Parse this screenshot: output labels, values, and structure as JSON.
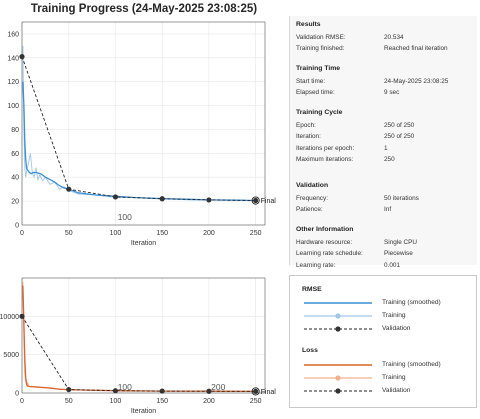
{
  "window": {
    "title": "Training Progress (24-May-2025 23:08:25)"
  },
  "plots": {
    "top": {
      "xlabel": "Iteration",
      "final_label": "Final",
      "annotation": "100",
      "yticks": [
        "0",
        "20",
        "40",
        "60",
        "80",
        "100",
        "120",
        "140",
        "160"
      ],
      "xticks": [
        "0",
        "50",
        "100",
        "150",
        "200",
        "250"
      ]
    },
    "bottom": {
      "xlabel": "Iteration",
      "final_label": "Final",
      "annotations": [
        "100",
        "200"
      ],
      "yticks": [
        "0",
        "5000",
        "10000"
      ],
      "xticks": [
        "0",
        "50",
        "100",
        "150",
        "200",
        "250"
      ]
    }
  },
  "colors": {
    "rmse": "#3b8fd4",
    "rmse_light": "#9fc7e8",
    "loss": "#d9652b",
    "loss_light": "#f2b08c",
    "validation": "#222222"
  },
  "results": {
    "heading": "Results",
    "rows": [
      {
        "key": "Validation RMSE:",
        "value": "20.534"
      },
      {
        "key": "Training finished:",
        "value": "Reached final iteration"
      }
    ]
  },
  "training_time": {
    "heading": "Training Time",
    "rows": [
      {
        "key": "Start time:",
        "value": "24-May-2025 23:08:25"
      },
      {
        "key": "Elapsed time:",
        "value": "9 sec"
      }
    ]
  },
  "training_cycle": {
    "heading": "Training Cycle",
    "rows": [
      {
        "key": "Epoch:",
        "value": "250 of 250"
      },
      {
        "key": "Iteration:",
        "value": "250 of 250"
      },
      {
        "key": "Iterations per epoch:",
        "value": "1"
      },
      {
        "key": "Maximum iterations:",
        "value": "250"
      }
    ]
  },
  "validation": {
    "heading": "Validation",
    "rows": [
      {
        "key": "Frequency:",
        "value": "50 iterations"
      },
      {
        "key": "Patience:",
        "value": "Inf"
      }
    ]
  },
  "other_information": {
    "heading": "Other Information",
    "rows": [
      {
        "key": "Hardware resource:",
        "value": "Single CPU"
      },
      {
        "key": "Learning rate schedule:",
        "value": "Piecewise"
      },
      {
        "key": "Learning rate:",
        "value": "0.001"
      }
    ]
  },
  "legend": {
    "rmse_heading": "RMSE",
    "loss_heading": "Loss",
    "training_smoothed": "Training (smoothed)",
    "training": "Training",
    "validation": "Validation"
  },
  "chart_data": [
    {
      "type": "line",
      "ylabel": "",
      "xlabel": "Iteration",
      "xlim": [
        0,
        260
      ],
      "ylim": [
        0,
        170
      ],
      "series": [
        {
          "name": "Training (smoothed)",
          "x": [
            1,
            2,
            3,
            4,
            5,
            8,
            10,
            12,
            15,
            20,
            25,
            30,
            35,
            40,
            45,
            50,
            60,
            80,
            100,
            120,
            150,
            180,
            200,
            230,
            250
          ],
          "y": [
            120,
            100,
            70,
            55,
            47,
            44,
            43,
            44,
            44,
            43,
            40,
            38,
            36,
            33,
            31,
            30,
            27,
            25,
            24,
            23,
            22,
            21.5,
            21,
            20.8,
            20.5
          ]
        },
        {
          "name": "Training",
          "x": [
            1,
            2,
            3,
            4,
            5,
            7,
            9,
            11,
            13,
            15,
            17,
            19,
            22,
            25,
            30,
            35,
            40,
            45,
            50,
            60,
            80,
            100,
            120,
            150,
            180,
            200,
            230,
            250
          ],
          "y": [
            150,
            80,
            48,
            40,
            45,
            52,
            60,
            44,
            40,
            48,
            38,
            42,
            37,
            40,
            34,
            36,
            30,
            32,
            29,
            26,
            25,
            23,
            23,
            22,
            21,
            21,
            20.6,
            20.5
          ]
        },
        {
          "name": "Validation",
          "x": [
            0,
            50,
            100,
            150,
            200,
            250
          ],
          "y": [
            141,
            30,
            23.5,
            22,
            21,
            20.5
          ]
        }
      ]
    },
    {
      "type": "line",
      "ylabel": "",
      "xlabel": "Iteration",
      "xlim": [
        0,
        260
      ],
      "ylim": [
        0,
        15000
      ],
      "series": [
        {
          "name": "Training (smoothed)",
          "x": [
            1,
            2,
            3,
            4,
            5,
            6,
            8,
            10,
            15,
            20,
            30,
            40,
            50,
            80,
            100,
            150,
            200,
            250
          ],
          "y": [
            14000,
            9000,
            4500,
            2000,
            1100,
            900,
            850,
            820,
            800,
            750,
            650,
            500,
            450,
            350,
            300,
            250,
            230,
            210
          ]
        },
        {
          "name": "Training",
          "x": [
            1,
            2,
            3,
            4,
            5,
            6,
            8,
            10,
            15,
            20,
            30,
            40,
            50,
            80,
            100,
            150,
            200,
            250
          ],
          "y": [
            14500,
            7000,
            2500,
            1500,
            1000,
            1300,
            800,
            900,
            700,
            750,
            600,
            500,
            420,
            350,
            300,
            250,
            230,
            210
          ]
        },
        {
          "name": "Validation",
          "x": [
            0,
            50,
            100,
            150,
            200,
            250
          ],
          "y": [
            10000,
            450,
            300,
            250,
            230,
            210
          ]
        }
      ]
    }
  ]
}
